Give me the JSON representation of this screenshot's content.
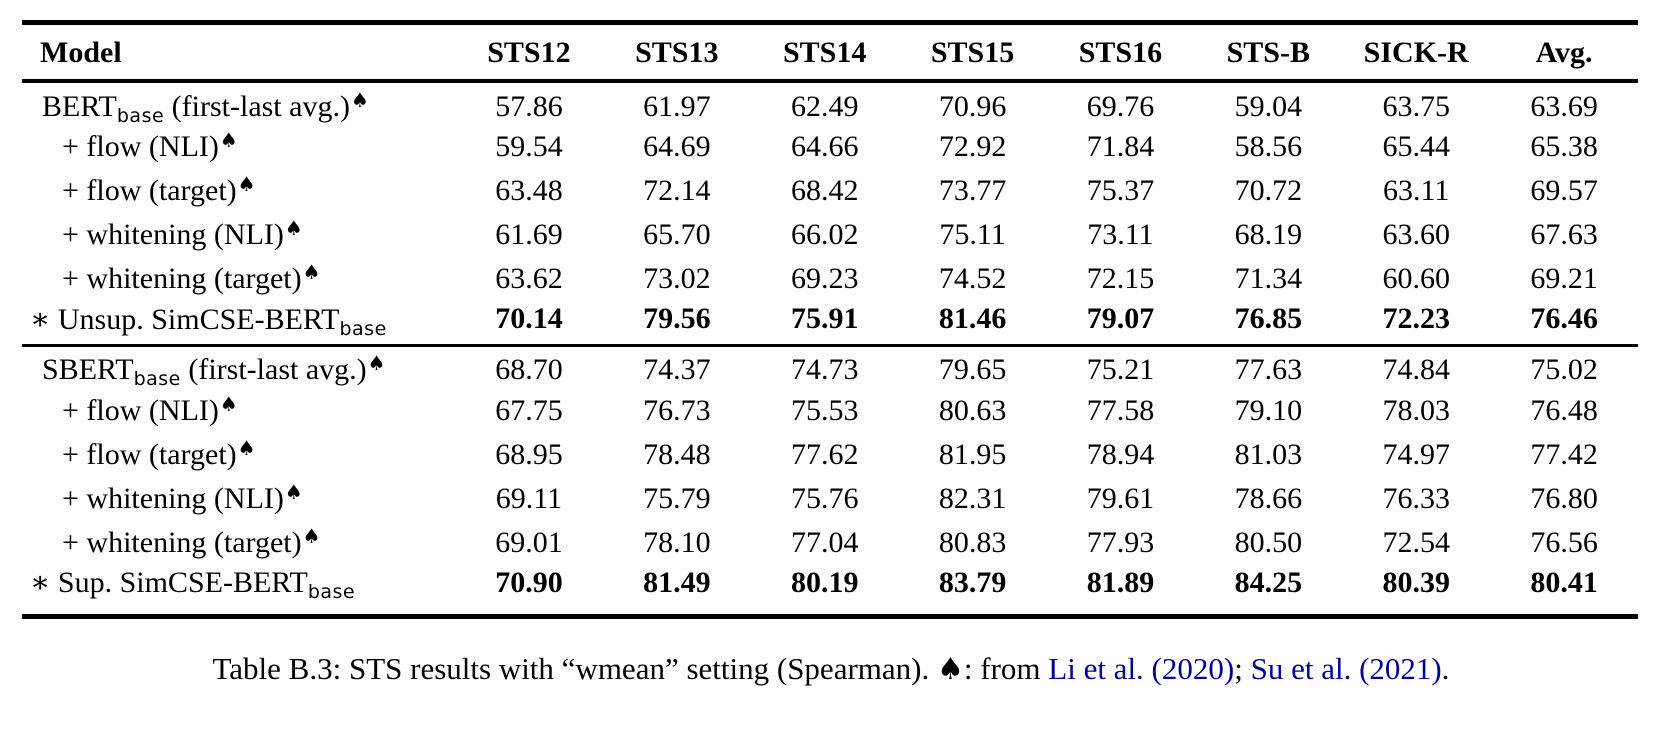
{
  "colors": {
    "background": "#ffffff",
    "text": "#000000",
    "citation_link": "#000099",
    "rule": "#000000"
  },
  "icons": {
    "spade": "♠",
    "asterisk": "∗",
    "plus": "+"
  },
  "table": {
    "type": "table",
    "columns": [
      "Model",
      "STS12",
      "STS13",
      "STS14",
      "STS15",
      "STS16",
      "STS-B",
      "SICK-R",
      "Avg."
    ],
    "sections": [
      {
        "rows": [
          {
            "pre": "",
            "main": "BERT",
            "sub": "base",
            "post": " (first-last avg.)",
            "spade": true,
            "bold_values": false,
            "values": [
              "57.86",
              "61.97",
              "62.49",
              "70.96",
              "69.76",
              "59.04",
              "63.75",
              "63.69"
            ]
          },
          {
            "pre": "+",
            "main": "flow (NLI)",
            "sub": "",
            "post": "",
            "spade": true,
            "bold_values": false,
            "values": [
              "59.54",
              "64.69",
              "64.66",
              "72.92",
              "71.84",
              "58.56",
              "65.44",
              "65.38"
            ]
          },
          {
            "pre": "+",
            "main": "flow (target)",
            "sub": "",
            "post": "",
            "spade": true,
            "bold_values": false,
            "values": [
              "63.48",
              "72.14",
              "68.42",
              "73.77",
              "75.37",
              "70.72",
              "63.11",
              "69.57"
            ]
          },
          {
            "pre": "+",
            "main": "whitening (NLI)",
            "sub": "",
            "post": "",
            "spade": true,
            "bold_values": false,
            "values": [
              "61.69",
              "65.70",
              "66.02",
              "75.11",
              "73.11",
              "68.19",
              "63.60",
              "67.63"
            ]
          },
          {
            "pre": "+",
            "main": "whitening (target)",
            "sub": "",
            "post": "",
            "spade": true,
            "bold_values": false,
            "values": [
              "63.62",
              "73.02",
              "69.23",
              "74.52",
              "72.15",
              "71.34",
              "60.60",
              "69.21"
            ]
          },
          {
            "pre": "∗",
            "main": "Unsup. SimCSE-BERT",
            "sub": "base",
            "post": "",
            "spade": false,
            "bold_values": true,
            "values": [
              "70.14",
              "79.56",
              "75.91",
              "81.46",
              "79.07",
              "76.85",
              "72.23",
              "76.46"
            ]
          }
        ]
      },
      {
        "rows": [
          {
            "pre": "",
            "main": "SBERT",
            "sub": "base",
            "post": " (first-last avg.)",
            "spade": true,
            "bold_values": false,
            "values": [
              "68.70",
              "74.37",
              "74.73",
              "79.65",
              "75.21",
              "77.63",
              "74.84",
              "75.02"
            ]
          },
          {
            "pre": "+",
            "main": "flow (NLI)",
            "sub": "",
            "post": "",
            "spade": true,
            "bold_values": false,
            "values": [
              "67.75",
              "76.73",
              "75.53",
              "80.63",
              "77.58",
              "79.10",
              "78.03",
              "76.48"
            ]
          },
          {
            "pre": "+",
            "main": "flow (target)",
            "sub": "",
            "post": "",
            "spade": true,
            "bold_values": false,
            "values": [
              "68.95",
              "78.48",
              "77.62",
              "81.95",
              "78.94",
              "81.03",
              "74.97",
              "77.42"
            ]
          },
          {
            "pre": "+",
            "main": "whitening (NLI)",
            "sub": "",
            "post": "",
            "spade": true,
            "bold_values": false,
            "values": [
              "69.11",
              "75.79",
              "75.76",
              "82.31",
              "79.61",
              "78.66",
              "76.33",
              "76.80"
            ]
          },
          {
            "pre": "+",
            "main": "whitening (target)",
            "sub": "",
            "post": "",
            "spade": true,
            "bold_values": false,
            "values": [
              "69.01",
              "78.10",
              "77.04",
              "80.83",
              "77.93",
              "80.50",
              "72.54",
              "76.56"
            ]
          },
          {
            "pre": "∗",
            "main": "Sup. SimCSE-BERT",
            "sub": "base",
            "post": "",
            "spade": false,
            "bold_values": true,
            "values": [
              "70.90",
              "81.49",
              "80.19",
              "83.79",
              "81.89",
              "84.25",
              "80.39",
              "80.41"
            ]
          }
        ]
      }
    ]
  },
  "caption": {
    "segments": [
      {
        "text": "Table B.3: STS results with “wmean” setting (Spearman). ",
        "link": false,
        "spade": false,
        "name": "caption-text"
      },
      {
        "text": "♠",
        "link": false,
        "spade": true,
        "name": "spade-icon"
      },
      {
        "text": ": from ",
        "link": false,
        "spade": false,
        "name": "caption-text"
      },
      {
        "text": "Li et al. (2020)",
        "link": true,
        "spade": false,
        "name": "citation-link-li-2020"
      },
      {
        "text": "; ",
        "link": false,
        "spade": false,
        "name": "caption-text"
      },
      {
        "text": "Su et al. (2021)",
        "link": true,
        "spade": false,
        "name": "citation-link-su-2021"
      },
      {
        "text": ".",
        "link": false,
        "spade": false,
        "name": "caption-text"
      }
    ]
  }
}
